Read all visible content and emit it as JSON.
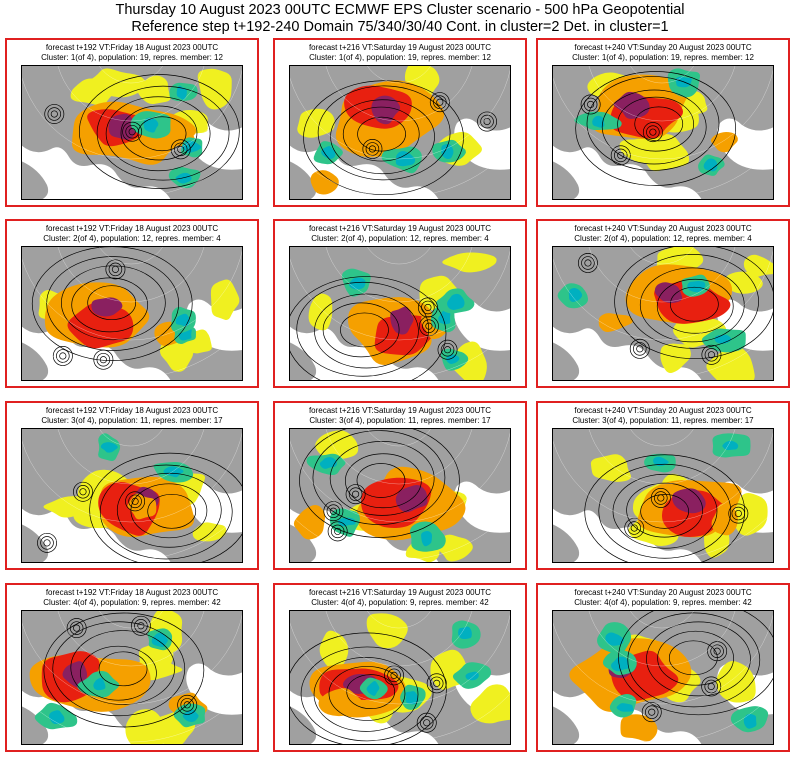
{
  "header": {
    "line1": "Thursday 10 August 2023 00UTC ECMWF EPS Cluster scenario - 500 hPa Geopotential",
    "line2": "Reference step t+192-240 Domain 75/340/30/40 Cont. in cluster=2 Det. in cluster=1"
  },
  "legend_colors": {
    "negative_strong": "#00b0c0",
    "negative": "#2ec48a",
    "positive_weak": "#f0f020",
    "positive": "#f5a000",
    "positive_strong": "#e82010",
    "positive_extreme": "#8a2060",
    "land": "#a0a0a0",
    "border": "#e02020"
  },
  "rows": [
    {
      "cluster": 1,
      "panels": [
        {
          "line1": "forecast t+192 VT:Friday 18 August 2023 00UTC",
          "line2": "Cluster: 1(of 4), population: 19, repres. member: 12"
        },
        {
          "line1": "forecast t+216 VT:Saturday 19 August 2023 00UTC",
          "line2": "Cluster: 1(of 4), population: 19, repres. member: 12"
        },
        {
          "line1": "forecast t+240 VT:Sunday 20 August 2023 00UTC",
          "line2": "Cluster: 1(of 4), population: 19, repres. member: 12"
        }
      ]
    },
    {
      "cluster": 2,
      "panels": [
        {
          "line1": "forecast t+192 VT:Friday 18 August 2023 00UTC",
          "line2": "Cluster: 2(of 4), population: 12, repres. member: 4"
        },
        {
          "line1": "forecast t+216 VT:Saturday 19 August 2023 00UTC",
          "line2": "Cluster: 2(of 4), population: 12, repres. member: 4"
        },
        {
          "line1": "forecast t+240 VT:Sunday 20 August 2023 00UTC",
          "line2": "Cluster: 2(of 4), population: 12, repres. member: 4"
        }
      ]
    },
    {
      "cluster": 3,
      "panels": [
        {
          "line1": "forecast t+192 VT:Friday 18 August 2023 00UTC",
          "line2": "Cluster: 3(of 4), population: 11, repres. member: 17"
        },
        {
          "line1": "forecast t+216 VT:Saturday 19 August 2023 00UTC",
          "line2": "Cluster: 3(of 4), population: 11, repres. member: 17"
        },
        {
          "line1": "forecast t+240 VT:Sunday 20 August 2023 00UTC",
          "line2": "Cluster: 3(of 4), population: 11, repres. member: 17"
        }
      ]
    },
    {
      "cluster": 4,
      "panels": [
        {
          "line1": "forecast t+192 VT:Friday 18 August 2023 00UTC",
          "line2": "Cluster: 4(of 4), population: 9, repres. member: 42"
        },
        {
          "line1": "forecast t+216 VT:Saturday 19 August 2023 00UTC",
          "line2": "Cluster: 4(of 4), population: 9, repres. member: 42"
        },
        {
          "line1": "forecast t+240 VT:Sunday 20 August 2023 00UTC",
          "line2": "Cluster: 4(of 4), population: 9, repres. member: 42"
        }
      ]
    }
  ]
}
